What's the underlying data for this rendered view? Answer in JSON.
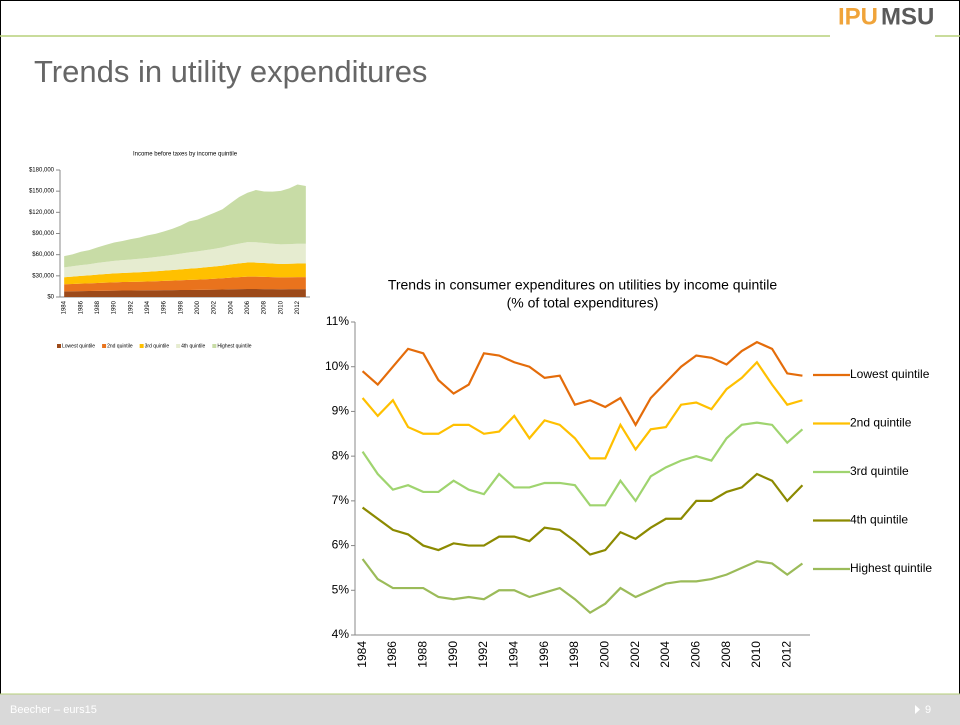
{
  "slide": {
    "logo": {
      "part1": "IPU",
      "part2": "MSU"
    },
    "title": "Trends in utility expenditures",
    "footer": "Beecher – eurs15",
    "page": "9"
  },
  "chart_data": [
    {
      "type": "area",
      "title": "Income before taxes by income quintile",
      "categories": [
        "1984",
        null,
        "1986",
        null,
        "1988",
        null,
        "1990",
        null,
        "1992",
        null,
        "1994",
        null,
        "1996",
        null,
        "1998",
        null,
        "2000",
        null,
        "2002",
        null,
        "2004",
        null,
        "2006",
        null,
        "2008",
        null,
        "2010",
        null,
        "2012",
        null
      ],
      "ylim": [
        0,
        180000
      ],
      "yticks": [
        {
          "value": 0,
          "label": "$0"
        },
        {
          "value": 30000,
          "label": "$30,000"
        },
        {
          "value": 60000,
          "label": "$60,000"
        },
        {
          "value": 90000,
          "label": "$90,000"
        },
        {
          "value": 120000,
          "label": "$120,000"
        },
        {
          "value": 150000,
          "label": "$150,000"
        },
        {
          "value": 180000,
          "label": "$180,000"
        }
      ],
      "legend": "bottom",
      "series": [
        {
          "name": "Lowest quintile",
          "color": "#9c4a1a",
          "values": [
            8000,
            8200,
            8400,
            8500,
            8700,
            8900,
            9000,
            9200,
            9300,
            9400,
            9500,
            9600,
            9700,
            9800,
            9900,
            10000,
            10100,
            10300,
            10500,
            10700,
            11000,
            11200,
            11400,
            11300,
            11200,
            11100,
            11000,
            11100,
            11200,
            11200
          ]
        },
        {
          "name": "2nd quintile",
          "color": "#e9731d",
          "values": [
            10000,
            10300,
            10600,
            10800,
            11200,
            11500,
            11800,
            12000,
            12100,
            12300,
            12500,
            12800,
            13100,
            13400,
            13800,
            14200,
            14500,
            14900,
            15300,
            15800,
            16500,
            17000,
            17500,
            17500,
            17300,
            17000,
            16800,
            16900,
            17000,
            17000
          ]
        },
        {
          "name": "3rd quintile",
          "color": "#ffc000",
          "values": [
            10000,
            10400,
            10900,
            11300,
            11800,
            12200,
            12600,
            12900,
            13100,
            13400,
            13700,
            14100,
            14500,
            15000,
            15500,
            16000,
            16400,
            16900,
            17400,
            18000,
            18800,
            19500,
            20000,
            20000,
            19700,
            19300,
            19000,
            19100,
            19200,
            19200
          ]
        },
        {
          "name": "4th quintile",
          "color": "#e6ecd0",
          "values": [
            14000,
            14600,
            15300,
            15900,
            16600,
            17200,
            17800,
            18200,
            18600,
            19100,
            19600,
            20200,
            20800,
            21500,
            22200,
            23000,
            23600,
            24300,
            25000,
            25800,
            27000,
            28000,
            28800,
            28800,
            28400,
            28000,
            27700,
            27800,
            28000,
            28000
          ]
        },
        {
          "name": "Highest quintile",
          "color": "#c8dca6",
          "values": [
            16000,
            17000,
            19000,
            20000,
            22000,
            24000,
            26000,
            27000,
            29000,
            30000,
            32000,
            33000,
            35000,
            37000,
            40000,
            44000,
            45000,
            48000,
            51000,
            54000,
            60000,
            66000,
            70000,
            74000,
            73000,
            74000,
            76000,
            79000,
            84000,
            82000
          ]
        }
      ]
    },
    {
      "type": "line",
      "title": "Trends in consumer expenditures on utilities by income quintile",
      "subtitle": "(% of total expenditures)",
      "categories": [
        "1984",
        null,
        "1986",
        null,
        "1988",
        null,
        "1990",
        null,
        "1992",
        null,
        "1994",
        null,
        "1996",
        null,
        "1998",
        null,
        "2000",
        null,
        "2002",
        null,
        "2004",
        null,
        "2006",
        null,
        "2008",
        null,
        "2010",
        null,
        "2012",
        null
      ],
      "ylim": [
        4,
        11
      ],
      "yticks": [
        {
          "value": 4,
          "label": "4%"
        },
        {
          "value": 5,
          "label": "5%"
        },
        {
          "value": 6,
          "label": "6%"
        },
        {
          "value": 7,
          "label": "7%"
        },
        {
          "value": 8,
          "label": "8%"
        },
        {
          "value": 9,
          "label": "9%"
        },
        {
          "value": 10,
          "label": "10%"
        },
        {
          "value": 11,
          "label": "11%"
        }
      ],
      "legend": "right",
      "series": [
        {
          "name": "Lowest quintile",
          "color": "#e46c0a",
          "values": [
            9.9,
            9.6,
            10.0,
            10.4,
            10.3,
            9.7,
            9.4,
            9.6,
            10.3,
            10.25,
            10.1,
            10.0,
            9.75,
            9.8,
            9.15,
            9.25,
            9.1,
            9.3,
            8.7,
            9.3,
            9.65,
            10.0,
            10.25,
            10.2,
            10.05,
            10.35,
            10.55,
            10.4,
            9.85,
            9.8
          ]
        },
        {
          "name": "2nd quintile",
          "color": "#ffc000",
          "values": [
            9.3,
            8.9,
            9.25,
            8.65,
            8.5,
            8.5,
            8.7,
            8.7,
            8.5,
            8.55,
            8.9,
            8.4,
            8.8,
            8.7,
            8.4,
            7.95,
            7.95,
            8.7,
            8.15,
            8.6,
            8.65,
            9.15,
            9.2,
            9.05,
            9.5,
            9.75,
            10.1,
            9.6,
            9.15,
            9.25
          ]
        },
        {
          "name": "3rd quintile",
          "color": "#9fd46f",
          "values": [
            8.1,
            7.6,
            7.25,
            7.35,
            7.2,
            7.2,
            7.45,
            7.25,
            7.15,
            7.6,
            7.3,
            7.3,
            7.4,
            7.4,
            7.35,
            6.9,
            6.9,
            7.45,
            7.0,
            7.55,
            7.75,
            7.9,
            8.0,
            7.9,
            8.4,
            8.7,
            8.75,
            8.7,
            8.3,
            8.6
          ]
        },
        {
          "name": "4th quintile",
          "color": "#8c8a00",
          "values": [
            6.85,
            6.6,
            6.35,
            6.25,
            6.0,
            5.9,
            6.05,
            6.0,
            6.0,
            6.2,
            6.2,
            6.1,
            6.4,
            6.35,
            6.1,
            5.8,
            5.9,
            6.3,
            6.15,
            6.4,
            6.6,
            6.6,
            7.0,
            7.0,
            7.2,
            7.3,
            7.6,
            7.45,
            7.0,
            7.35
          ]
        },
        {
          "name": "Highest quintile",
          "color": "#9bbb59",
          "values": [
            5.7,
            5.25,
            5.05,
            5.05,
            5.05,
            4.85,
            4.8,
            4.85,
            4.8,
            5.0,
            5.0,
            4.85,
            4.95,
            5.05,
            4.8,
            4.5,
            4.7,
            5.05,
            4.85,
            5.0,
            5.15,
            5.2,
            5.2,
            5.25,
            5.35,
            5.5,
            5.65,
            5.6,
            5.35,
            5.6
          ]
        }
      ]
    }
  ]
}
